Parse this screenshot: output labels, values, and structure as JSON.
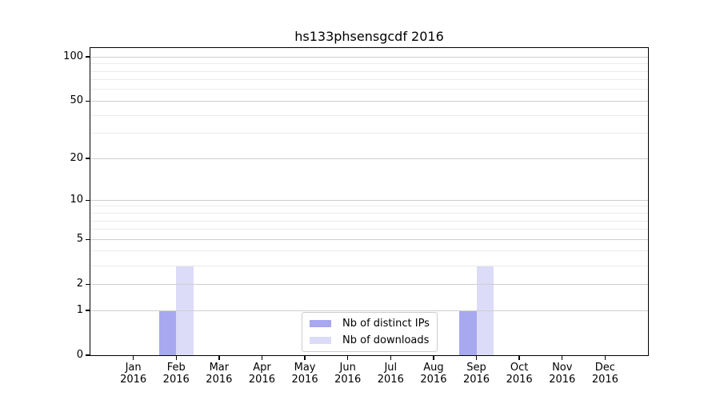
{
  "chart_data": {
    "type": "bar",
    "title": "hs133phsensgcdf 2016",
    "categories": [
      "Jan",
      "Feb",
      "Mar",
      "Apr",
      "May",
      "Jun",
      "Jul",
      "Aug",
      "Sep",
      "Oct",
      "Nov",
      "Dec"
    ],
    "category_year": "2016",
    "series": [
      {
        "name": "Nb of distinct IPs",
        "color": "#a8a8f0",
        "values": [
          0,
          1,
          0,
          0,
          0,
          0,
          0,
          0,
          1,
          0,
          0,
          0
        ]
      },
      {
        "name": "Nb of downloads",
        "color": "#dcdcf8",
        "values": [
          0,
          3,
          0,
          0,
          0,
          0,
          0,
          0,
          3,
          0,
          0,
          0
        ]
      }
    ],
    "xlabel": "",
    "ylabel": "",
    "y_scale": "log1p",
    "y_major_ticks": [
      0,
      1,
      2,
      5,
      10,
      20,
      50,
      100
    ],
    "y_minor_gridlines": [
      3,
      4,
      6,
      7,
      8,
      9,
      30,
      40,
      60,
      70,
      80,
      90
    ],
    "ylim": [
      0,
      115
    ],
    "grid": true,
    "grid_above_bars": true,
    "legend_position": "lower center",
    "colors": {
      "major_grid": "#cfcfcf",
      "minor_grid": "#ebebeb",
      "spine": "#000000",
      "background": "#ffffff"
    }
  }
}
